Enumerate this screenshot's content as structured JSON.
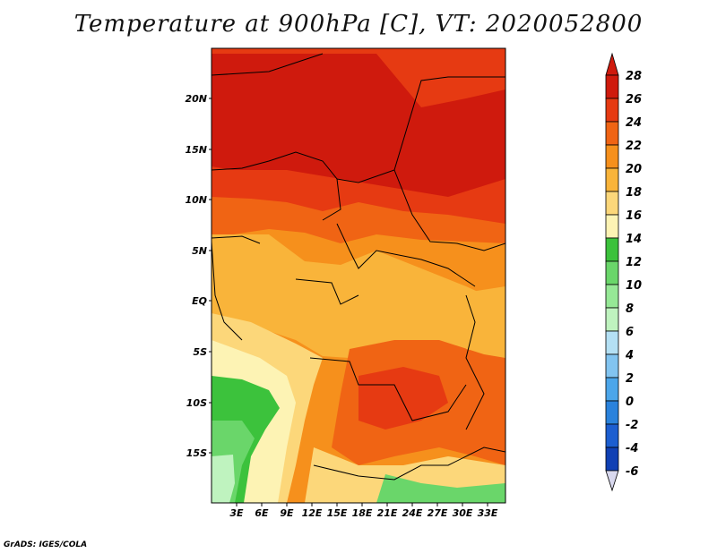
{
  "title": "Temperature at 900hPa [C], VT: 2020052800",
  "footer": "GrADS: IGES/COLA",
  "map": {
    "lat_labels": [
      "20N",
      "15N",
      "10N",
      "5N",
      "EQ",
      "5S",
      "10S",
      "15S"
    ],
    "lon_labels": [
      "3E",
      "6E",
      "9E",
      "12E",
      "15E",
      "18E",
      "21E",
      "24E",
      "27E",
      "30E",
      "33E"
    ],
    "lat_range": [
      -20,
      25
    ],
    "lon_range": [
      0,
      35
    ],
    "variable": "Temperature",
    "level": "900hPa",
    "units": "C"
  },
  "colorbar": {
    "levels": [
      "28",
      "26",
      "24",
      "22",
      "20",
      "18",
      "16",
      "14",
      "12",
      "10",
      "8",
      "6",
      "4",
      "2",
      "0",
      "-2",
      "-4",
      "-6"
    ],
    "colors": [
      "#cf1a0d",
      "#e63a12",
      "#f06414",
      "#f6901c",
      "#f9b43a",
      "#fcd77a",
      "#fdf3b4",
      "#3cc23c",
      "#6ad66a",
      "#96e896",
      "#bff3bf",
      "#b4e0f4",
      "#82c4f0",
      "#4ca6ea",
      "#2a82dc",
      "#1c5ed0",
      "#1040b4",
      "#0a1a72"
    ]
  }
}
